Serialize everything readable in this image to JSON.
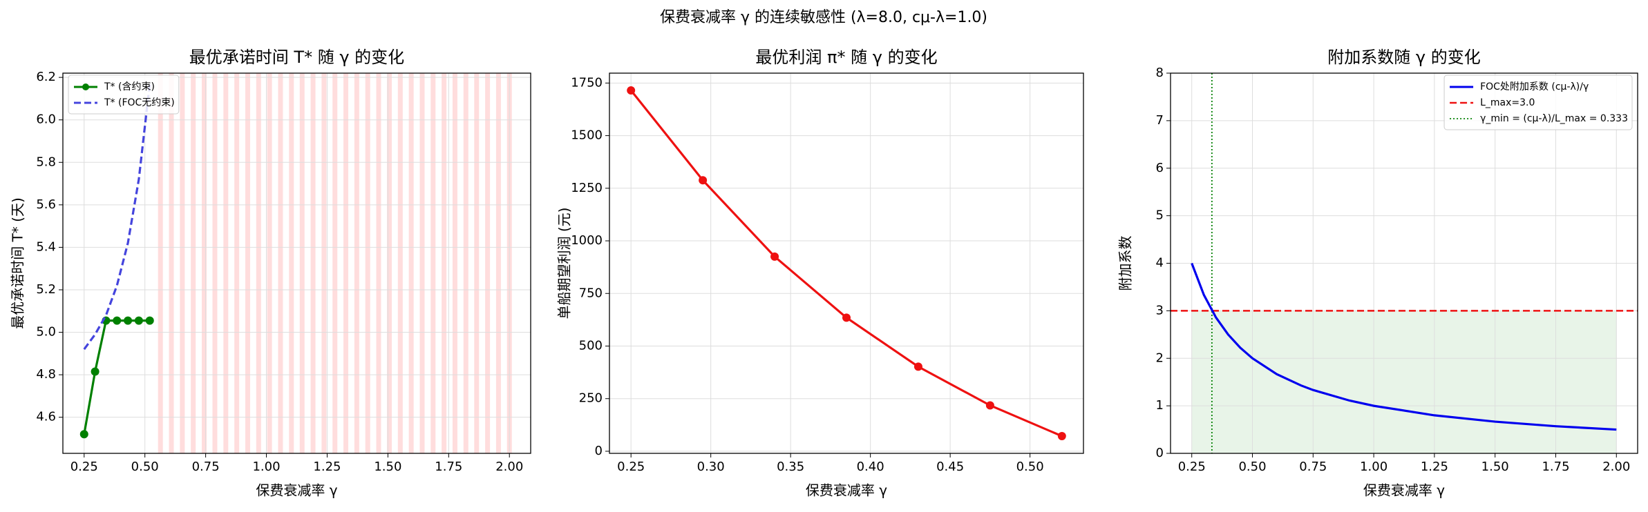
{
  "title": "保费衰减率 γ 的连续敏感性  (λ=8.0, cμ-λ=1.0)",
  "chart_data": [
    {
      "type": "line",
      "title": "最优承诺时间 T* 随 γ 的变化",
      "x_label": "保费衰减率 γ",
      "y_label": "最优承诺时间 T* (天)",
      "xlim": [
        0.1625,
        2.0875
      ],
      "xticks": [
        0.25,
        {
          "value": 0.5,
          "label": "0.50"
        },
        0.75,
        {
          "value": 1,
          "label": "1.00"
        },
        1.25,
        {
          "value": 1.5,
          "label": "1.50"
        },
        1.75,
        {
          "value": 2,
          "label": "2.00"
        }
      ],
      "ylim": [
        4.43,
        6.22
      ],
      "yticks": [
        4.6,
        4.8,
        {
          "value": 5,
          "label": "5.0"
        },
        5.2,
        5.4,
        5.6,
        5.8,
        {
          "value": 6,
          "label": "6.0"
        },
        6.2
      ],
      "grid": true,
      "legend": "upper left",
      "series": [
        {
          "name": "T* (含约束)",
          "color": "#008000",
          "dash": "solid",
          "marker": true,
          "x": [
            0.25,
            0.295,
            0.34,
            0.385,
            0.43,
            0.475,
            0.52
          ],
          "values": [
            4.52,
            4.815,
            5.055,
            5.055,
            5.055,
            5.055,
            5.055
          ]
        },
        {
          "name": "T* (FOC无约束)",
          "color": "#4444dd",
          "dash": "dashed",
          "marker": false,
          "x": [
            0.25,
            0.295,
            0.34,
            0.385,
            0.43,
            0.475,
            0.52
          ],
          "values": [
            4.92,
            4.99,
            5.08,
            5.22,
            5.42,
            5.72,
            6.17
          ]
        }
      ],
      "shaded_x": [
        0.564,
        0.609,
        0.654,
        0.699,
        0.744,
        0.788,
        0.833,
        0.878,
        0.923,
        0.968,
        1.013,
        1.058,
        1.103,
        1.147,
        1.192,
        1.237,
        1.282,
        1.327,
        1.372,
        1.417,
        1.462,
        1.506,
        1.551,
        1.596,
        1.641,
        1.686,
        1.731,
        1.776,
        1.821,
        1.865,
        1.91,
        1.955,
        2.0
      ],
      "shaded_color": "#ffb3b3"
    },
    {
      "type": "line",
      "title": "最优利润 π* 随 γ 的变化",
      "x_label": "保费衰减率 γ",
      "y_label": "单船期望利润 (元)",
      "xlim": [
        0.2365,
        0.5335
      ],
      "xticks": [
        0.25,
        {
          "value": 0.3,
          "label": "0.30"
        },
        0.35,
        {
          "value": 0.4,
          "label": "0.40"
        },
        0.45,
        {
          "value": 0.5,
          "label": "0.50"
        }
      ],
      "ylim": [
        -10,
        1797
      ],
      "yticks": [
        0,
        250,
        500,
        750,
        1000,
        1250,
        1500,
        1750
      ],
      "grid": true,
      "series": [
        {
          "name": "π*",
          "color": "#ee1111",
          "dash": "solid",
          "marker": true,
          "x": [
            0.25,
            0.295,
            0.34,
            0.385,
            0.43,
            0.475,
            0.52
          ],
          "values": [
            1715,
            1288,
            925,
            635,
            402,
            218,
            72
          ]
        }
      ]
    },
    {
      "type": "line",
      "title": "附加系数随 γ 的变化",
      "x_label": "保费衰减率 γ",
      "y_label": "附加系数",
      "xlim": [
        0.1625,
        2.0875
      ],
      "xticks": [
        0.25,
        {
          "value": 0.5,
          "label": "0.50"
        },
        0.75,
        {
          "value": 1,
          "label": "1.00"
        },
        1.25,
        {
          "value": 1.5,
          "label": "1.50"
        },
        1.75,
        {
          "value": 2,
          "label": "2.00"
        }
      ],
      "ylim": [
        0,
        8
      ],
      "yticks": [
        0,
        1,
        2,
        3,
        4,
        5,
        6,
        7,
        8
      ],
      "grid": true,
      "legend": "upper right",
      "series": [
        {
          "name": "FOC处附加系数 (cμ-λ)/γ",
          "color": "#0000ee",
          "dash": "solid",
          "marker": false,
          "x": [
            0.25,
            0.3,
            0.35,
            0.4,
            0.45,
            0.5,
            0.6,
            0.7,
            0.75,
            0.9,
            1.0,
            1.25,
            1.5,
            1.75,
            2.0
          ],
          "values": [
            4,
            3.333,
            2.857,
            2.5,
            2.222,
            2,
            1.667,
            1.429,
            1.333,
            1.111,
            1,
            0.8,
            0.667,
            0.571,
            0.5
          ]
        }
      ],
      "hlines": [
        {
          "name": "L_max=3.0",
          "value": 3,
          "color": "#ee1111",
          "dash": "dashed"
        }
      ],
      "vlines": [
        {
          "name": "γ_min = (cμ-λ)/L_max = 0.333",
          "value": 0.333,
          "color": "#008000",
          "dash": "dotted"
        }
      ],
      "fill_region": {
        "x": [
          0.25,
          2.0
        ],
        "y": [
          0,
          3
        ],
        "color": "#e8f4e8"
      }
    }
  ]
}
